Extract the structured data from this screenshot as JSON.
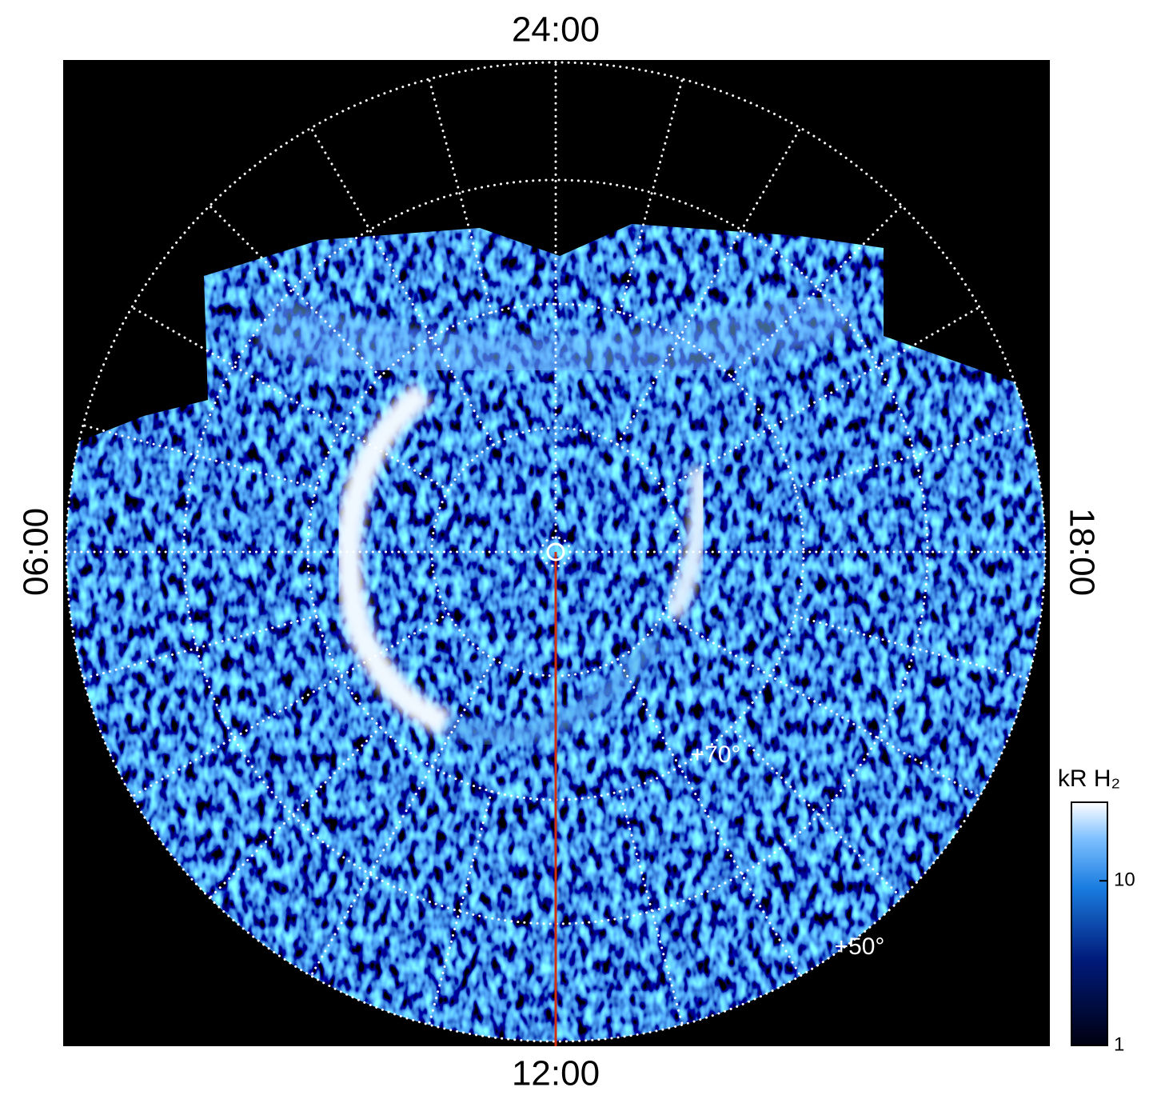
{
  "axes": {
    "top": "24:00",
    "left": "06:00",
    "right": "18:00",
    "bottom": "12:00"
  },
  "latitude_labels": [
    "+70°",
    "+50°"
  ],
  "colorbar": {
    "label": "kR H₂",
    "scale": "log",
    "range": [
      1,
      30
    ],
    "ticks": [
      1,
      10
    ]
  }
}
